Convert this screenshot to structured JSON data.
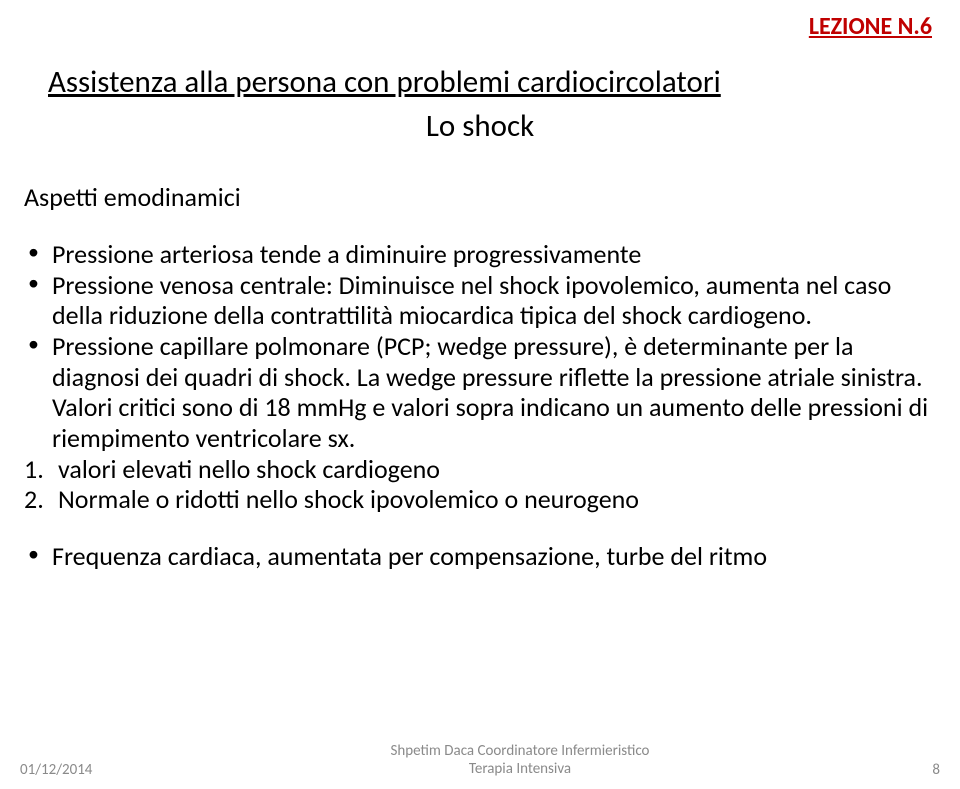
{
  "header": {
    "link_text": "LEZIONE N.6",
    "link_color": "#c00000"
  },
  "title": "Assistenza alla persona con problemi cardiocircolatori",
  "subtitle": "Lo shock",
  "section_label": "Aspetti emodinamici",
  "bullets": [
    "Pressione arteriosa tende a diminuire progressivamente",
    "Pressione venosa centrale: Diminuisce nel shock ipovolemico, aumenta nel caso della riduzione della contrattilità miocardica tipica del shock cardiogeno.",
    "Pressione capillare polmonare (PCP; wedge pressure), è determinante per la diagnosi dei quadri di shock. La wedge pressure riflette la pressione atriale sinistra. Valori critici sono di 18 mmHg e valori sopra indicano un aumento delle pressioni di riempimento ventricolare sx."
  ],
  "numbered": [
    "valori elevati nello shock cardiogeno",
    "Normale o ridotti nello shock ipovolemico o neurogeno"
  ],
  "final_bullet": "Frequenza cardiaca, aumentata per compensazione, turbe del ritmo",
  "footer": {
    "date": "01/12/2014",
    "center_line1": "Shpetim Daca   Coordinatore Infermieristico",
    "center_line2": "Terapia Intensiva",
    "page": "8",
    "color": "#8a8a8a"
  },
  "colors": {
    "text": "#000000",
    "background": "#ffffff"
  }
}
